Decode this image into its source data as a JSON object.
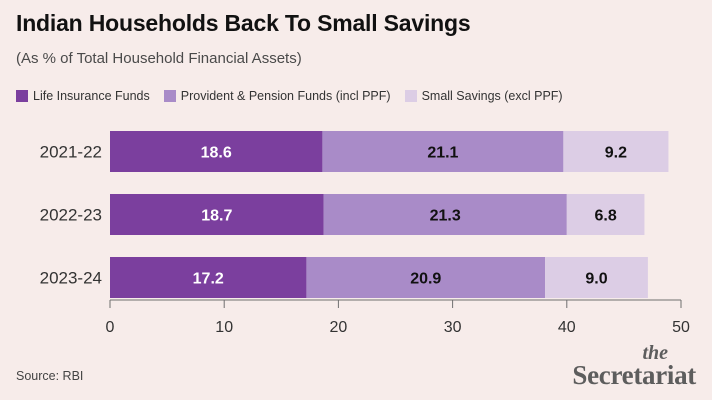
{
  "title": "Indian Households Back To Small Savings",
  "subtitle": "(As % of Total Household Financial Assets)",
  "source": "Source: RBI",
  "logo": {
    "the": "the",
    "name": "Secretariat"
  },
  "colors": {
    "background": "#f7ecea",
    "series": [
      "#7b3f9e",
      "#a98bc8",
      "#dccde5"
    ],
    "axis": "#6f6f6f"
  },
  "chart_data": {
    "type": "bar",
    "orientation": "horizontal",
    "stacked": true,
    "categories": [
      "2021-22",
      "2022-23",
      "2023-24"
    ],
    "series": [
      {
        "name": "Life Insurance Funds",
        "values": [
          18.6,
          18.7,
          17.2
        ]
      },
      {
        "name": "Provident & Pension Funds (incl PPF)",
        "values": [
          21.1,
          21.3,
          20.9
        ]
      },
      {
        "name": "Small Savings (excl PPF)",
        "values": [
          9.2,
          6.8,
          9.0
        ]
      }
    ],
    "value_labels": [
      [
        "18.6",
        "18.7",
        "17.2"
      ],
      [
        "21.1",
        "21.3",
        "20.9"
      ],
      [
        "9.2",
        "6.8",
        "9.0"
      ]
    ],
    "xlim": [
      0,
      50
    ],
    "xticks": [
      0,
      10,
      20,
      30,
      40,
      50
    ],
    "grid": false,
    "legend_position": "top-left"
  }
}
